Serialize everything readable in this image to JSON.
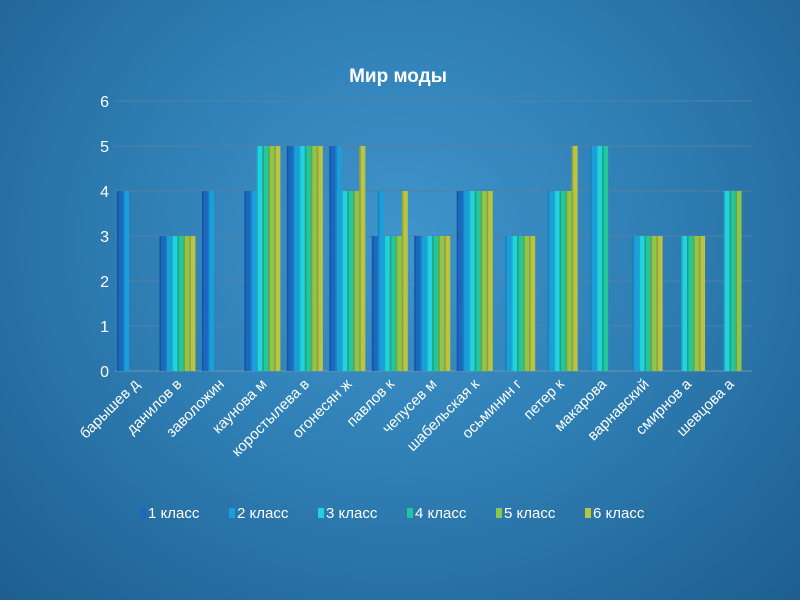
{
  "chart_data": {
    "type": "bar",
    "title": "Мир моды",
    "xlabel": "",
    "ylabel": "",
    "ylim": [
      0,
      6
    ],
    "yticks": [
      "0",
      "1",
      "2",
      "3",
      "4",
      "5",
      "6"
    ],
    "grid": true,
    "legend_position": "bottom",
    "categories": [
      "барышев д",
      "данилов в",
      "заволожин",
      "каунова м",
      "коростылева в",
      "огонесян ж",
      "павлов к",
      "чепусев м",
      "шабельская к",
      "осьминин г",
      "петер к",
      "макарова",
      "варнавский",
      "смирнов а",
      "шевцова а"
    ],
    "series": [
      {
        "name": "1 класс",
        "color": "#1a68c0",
        "values": [
          4,
          3,
          4,
          4,
          5,
          5,
          3,
          3,
          4,
          null,
          null,
          null,
          null,
          null,
          null
        ]
      },
      {
        "name": "2 класс",
        "color": "#1a9ede",
        "values": [
          4,
          3,
          4,
          4,
          5,
          5,
          4,
          3,
          4,
          3,
          4,
          5,
          3,
          null,
          null
        ]
      },
      {
        "name": "3 класс",
        "color": "#22d2e2",
        "values": [
          null,
          3,
          null,
          5,
          5,
          4,
          3,
          3,
          4,
          3,
          4,
          5,
          3,
          3,
          4
        ]
      },
      {
        "name": "4 класс",
        "color": "#23c79c",
        "values": [
          null,
          3,
          null,
          5,
          5,
          4,
          3,
          3,
          4,
          3,
          4,
          5,
          3,
          3,
          4
        ]
      },
      {
        "name": "5 класс",
        "color": "#8cc64c",
        "values": [
          null,
          3,
          null,
          5,
          5,
          4,
          3,
          3,
          4,
          3,
          4,
          null,
          3,
          3,
          4
        ]
      },
      {
        "name": "6 класс",
        "color": "#b9c443",
        "values": [
          null,
          3,
          null,
          5,
          5,
          5,
          4,
          3,
          4,
          3,
          5,
          null,
          3,
          3,
          null
        ]
      }
    ]
  }
}
